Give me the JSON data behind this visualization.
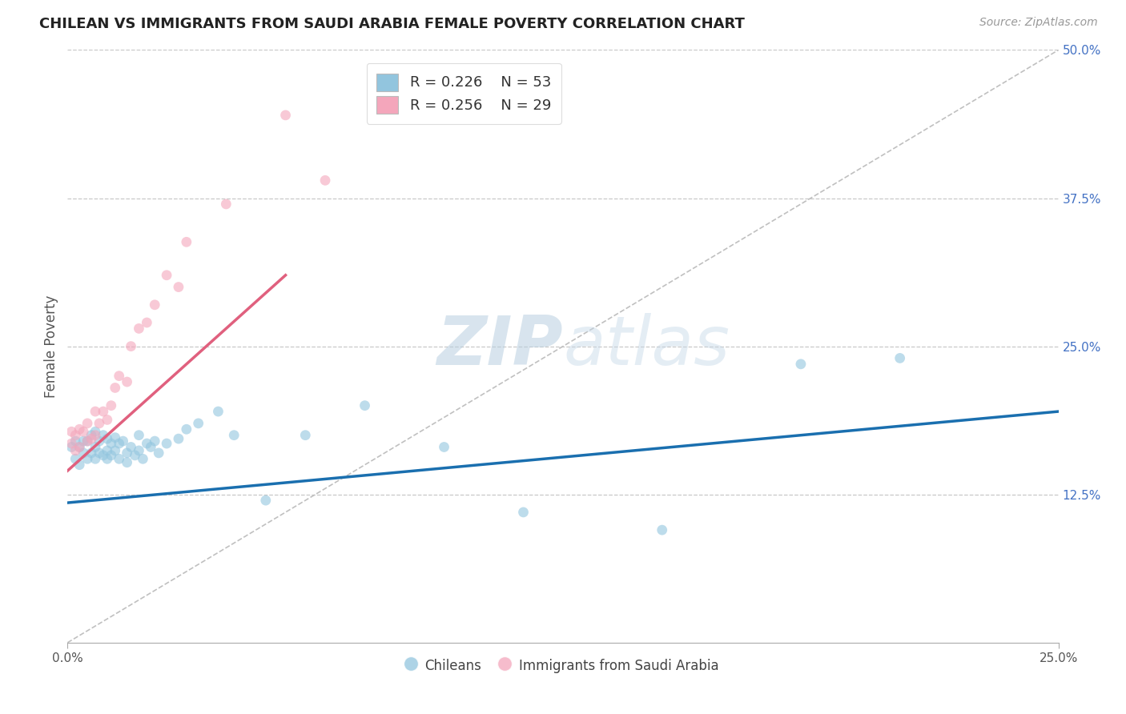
{
  "title": "CHILEAN VS IMMIGRANTS FROM SAUDI ARABIA FEMALE POVERTY CORRELATION CHART",
  "source": "Source: ZipAtlas.com",
  "ylabel": "Female Poverty",
  "xlim": [
    0.0,
    0.25
  ],
  "ylim": [
    0.0,
    0.5
  ],
  "background_color": "#ffffff",
  "grid_color": "#c8c8c8",
  "legend_r1": "R = 0.226",
  "legend_n1": "N = 53",
  "legend_r2": "R = 0.256",
  "legend_n2": "N = 29",
  "blue_color": "#92c5de",
  "pink_color": "#f4a6bb",
  "blue_line_color": "#1a6faf",
  "pink_line_color": "#e0607e",
  "diag_color": "#c0c0c0",
  "chileans_label": "Chileans",
  "immigrants_label": "Immigrants from Saudi Arabia",
  "blue_scatter_x": [
    0.001,
    0.002,
    0.002,
    0.003,
    0.003,
    0.004,
    0.004,
    0.005,
    0.005,
    0.006,
    0.006,
    0.007,
    0.007,
    0.007,
    0.008,
    0.008,
    0.009,
    0.009,
    0.01,
    0.01,
    0.01,
    0.011,
    0.011,
    0.012,
    0.012,
    0.013,
    0.013,
    0.014,
    0.015,
    0.015,
    0.016,
    0.017,
    0.018,
    0.018,
    0.019,
    0.02,
    0.021,
    0.022,
    0.023,
    0.025,
    0.028,
    0.03,
    0.033,
    0.038,
    0.042,
    0.05,
    0.06,
    0.075,
    0.095,
    0.115,
    0.15,
    0.185,
    0.21
  ],
  "blue_scatter_y": [
    0.165,
    0.155,
    0.17,
    0.15,
    0.165,
    0.16,
    0.17,
    0.155,
    0.17,
    0.16,
    0.175,
    0.155,
    0.165,
    0.178,
    0.16,
    0.17,
    0.158,
    0.175,
    0.162,
    0.155,
    0.172,
    0.158,
    0.168,
    0.162,
    0.173,
    0.155,
    0.168,
    0.17,
    0.16,
    0.152,
    0.165,
    0.158,
    0.162,
    0.175,
    0.155,
    0.168,
    0.165,
    0.17,
    0.16,
    0.168,
    0.172,
    0.18,
    0.185,
    0.195,
    0.175,
    0.12,
    0.175,
    0.2,
    0.165,
    0.11,
    0.095,
    0.235,
    0.24
  ],
  "pink_scatter_x": [
    0.001,
    0.001,
    0.002,
    0.002,
    0.003,
    0.003,
    0.004,
    0.005,
    0.005,
    0.006,
    0.007,
    0.007,
    0.008,
    0.009,
    0.01,
    0.011,
    0.012,
    0.013,
    0.015,
    0.016,
    0.018,
    0.02,
    0.022,
    0.025,
    0.028,
    0.03,
    0.04,
    0.055,
    0.065
  ],
  "pink_scatter_y": [
    0.168,
    0.178,
    0.162,
    0.175,
    0.165,
    0.18,
    0.178,
    0.17,
    0.185,
    0.172,
    0.175,
    0.195,
    0.185,
    0.195,
    0.188,
    0.2,
    0.215,
    0.225,
    0.22,
    0.25,
    0.265,
    0.27,
    0.285,
    0.31,
    0.3,
    0.338,
    0.37,
    0.445,
    0.39
  ],
  "blue_line_x": [
    0.0,
    0.25
  ],
  "blue_line_y": [
    0.118,
    0.195
  ],
  "pink_line_x": [
    0.0,
    0.055
  ],
  "pink_line_y": [
    0.145,
    0.31
  ]
}
